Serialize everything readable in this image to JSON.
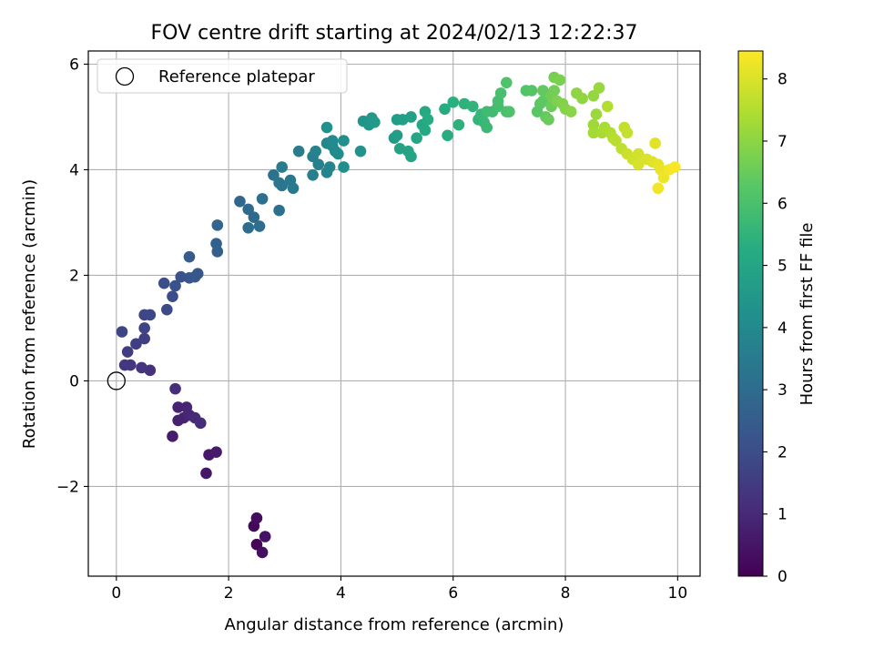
{
  "chart_data": {
    "type": "scatter",
    "title": "FOV centre drift starting at 2024/02/13 12:22:37",
    "xlabel": "Angular distance from reference (arcmin)",
    "ylabel": "Rotation from reference (arcmin)",
    "xlim": [
      -0.5,
      10.4
    ],
    "ylim": [
      -3.7,
      6.25
    ],
    "xticks": [
      0,
      2,
      4,
      6,
      8,
      10
    ],
    "yticks": [
      -2,
      0,
      2,
      4,
      6
    ],
    "xtick_labels": [
      "0",
      "2",
      "4",
      "6",
      "8",
      "10"
    ],
    "ytick_labels": [
      "−2",
      "0",
      "2",
      "4",
      "6"
    ],
    "grid": true,
    "legend": {
      "placement": "top-left",
      "entries": [
        "Reference platepar"
      ]
    },
    "reference_point": {
      "x": 0,
      "y": 0,
      "label": "Reference platepar"
    },
    "colorbar": {
      "label": "Hours from first FF file",
      "range": [
        0,
        8.45
      ],
      "ticks": [
        0,
        1,
        2,
        3,
        4,
        5,
        6,
        7,
        8
      ],
      "tick_labels": [
        "0",
        "1",
        "2",
        "3",
        "4",
        "5",
        "6",
        "7",
        "8"
      ],
      "colormap": "viridis"
    },
    "points": [
      [
        2.5,
        -3.1,
        0.1
      ],
      [
        2.45,
        -2.75,
        0.2
      ],
      [
        2.5,
        -2.6,
        0.3
      ],
      [
        2.6,
        -3.25,
        0.35
      ],
      [
        2.65,
        -2.95,
        0.45
      ],
      [
        1.6,
        -1.75,
        0.55
      ],
      [
        1.65,
        -1.4,
        0.6
      ],
      [
        1.78,
        -1.35,
        0.65
      ],
      [
        1.0,
        -1.05,
        0.7
      ],
      [
        1.1,
        -0.75,
        0.75
      ],
      [
        1.2,
        -0.7,
        0.8
      ],
      [
        1.1,
        -0.5,
        0.85
      ],
      [
        1.25,
        -0.5,
        0.9
      ],
      [
        1.3,
        -0.65,
        0.95
      ],
      [
        1.4,
        -0.7,
        1.0
      ],
      [
        1.5,
        -0.8,
        1.05
      ],
      [
        1.05,
        -0.15,
        1.1
      ],
      [
        0.6,
        0.2,
        1.2
      ],
      [
        0.45,
        0.25,
        1.3
      ],
      [
        0.25,
        0.3,
        1.35
      ],
      [
        0.15,
        0.3,
        1.4
      ],
      [
        0.2,
        0.55,
        1.5
      ],
      [
        0.35,
        0.7,
        1.55
      ],
      [
        0.5,
        0.8,
        1.6
      ],
      [
        0.5,
        1.0,
        1.7
      ],
      [
        0.1,
        0.93,
        1.75
      ],
      [
        0.5,
        1.25,
        1.8
      ],
      [
        0.6,
        1.25,
        1.85
      ],
      [
        0.9,
        1.35,
        1.9
      ],
      [
        1.0,
        1.6,
        2.0
      ],
      [
        0.85,
        1.85,
        2.05
      ],
      [
        1.05,
        1.8,
        2.1
      ],
      [
        1.15,
        1.97,
        2.2
      ],
      [
        1.3,
        1.95,
        2.25
      ],
      [
        1.4,
        1.97,
        2.3
      ],
      [
        1.45,
        2.03,
        2.35
      ],
      [
        1.3,
        2.35,
        2.45
      ],
      [
        1.8,
        2.45,
        2.55
      ],
      [
        1.78,
        2.6,
        2.65
      ],
      [
        1.8,
        2.95,
        2.75
      ],
      [
        2.2,
        3.4,
        2.85
      ],
      [
        2.35,
        3.25,
        2.9
      ],
      [
        2.45,
        3.1,
        2.95
      ],
      [
        2.35,
        2.9,
        3.0
      ],
      [
        2.55,
        2.93,
        3.05
      ],
      [
        2.6,
        3.45,
        3.1
      ],
      [
        2.9,
        3.23,
        3.15
      ],
      [
        2.8,
        3.9,
        3.2
      ],
      [
        2.95,
        3.7,
        3.3
      ],
      [
        2.9,
        3.75,
        3.35
      ],
      [
        3.1,
        3.8,
        3.4
      ],
      [
        3.15,
        3.65,
        3.45
      ],
      [
        2.95,
        4.05,
        3.5
      ],
      [
        3.25,
        4.35,
        3.55
      ],
      [
        3.5,
        4.25,
        3.6
      ],
      [
        3.5,
        3.9,
        3.65
      ],
      [
        3.6,
        4.1,
        3.7
      ],
      [
        3.55,
        4.35,
        3.75
      ],
      [
        3.75,
        3.95,
        3.8
      ],
      [
        3.8,
        4.05,
        3.85
      ],
      [
        3.75,
        4.5,
        3.9
      ],
      [
        3.85,
        4.45,
        3.95
      ],
      [
        3.9,
        4.35,
        4.0
      ],
      [
        3.85,
        4.55,
        4.05
      ],
      [
        3.95,
        4.3,
        4.1
      ],
      [
        4.05,
        4.05,
        4.15
      ],
      [
        4.05,
        4.55,
        4.2
      ],
      [
        3.75,
        4.8,
        4.25
      ],
      [
        4.35,
        4.35,
        4.3
      ],
      [
        4.4,
        4.92,
        4.4
      ],
      [
        4.5,
        4.85,
        4.45
      ],
      [
        4.55,
        4.98,
        4.5
      ],
      [
        4.6,
        4.9,
        4.55
      ],
      [
        4.95,
        4.6,
        4.6
      ],
      [
        5.0,
        4.65,
        4.65
      ],
      [
        5.0,
        4.95,
        4.7
      ],
      [
        5.1,
        4.95,
        4.75
      ],
      [
        5.25,
        5.0,
        4.8
      ],
      [
        5.05,
        4.4,
        4.85
      ],
      [
        5.2,
        4.35,
        4.9
      ],
      [
        5.25,
        4.25,
        4.95
      ],
      [
        5.35,
        4.6,
        5.0
      ],
      [
        5.45,
        4.85,
        5.05
      ],
      [
        5.5,
        4.75,
        5.1
      ],
      [
        5.5,
        5.1,
        5.15
      ],
      [
        5.55,
        4.95,
        5.2
      ],
      [
        5.85,
        5.15,
        5.25
      ],
      [
        5.9,
        4.65,
        5.3
      ],
      [
        6.0,
        5.28,
        5.35
      ],
      [
        6.1,
        4.85,
        5.4
      ],
      [
        6.2,
        5.25,
        5.45
      ],
      [
        6.35,
        5.2,
        5.5
      ],
      [
        6.45,
        4.95,
        5.55
      ],
      [
        6.5,
        5.05,
        5.6
      ],
      [
        6.55,
        4.9,
        5.65
      ],
      [
        6.6,
        4.8,
        5.7
      ],
      [
        6.6,
        5.1,
        5.75
      ],
      [
        6.7,
        5.1,
        5.8
      ],
      [
        6.8,
        5.2,
        5.85
      ],
      [
        6.8,
        5.3,
        5.9
      ],
      [
        6.85,
        5.45,
        5.95
      ],
      [
        6.95,
        5.1,
        6.0
      ],
      [
        7.0,
        5.1,
        6.05
      ],
      [
        6.95,
        5.65,
        6.1
      ],
      [
        7.3,
        5.5,
        6.15
      ],
      [
        7.4,
        5.5,
        6.2
      ],
      [
        7.5,
        5.1,
        6.25
      ],
      [
        7.55,
        5.25,
        6.3
      ],
      [
        7.6,
        5.3,
        6.35
      ],
      [
        7.6,
        5.5,
        6.4
      ],
      [
        7.65,
        5.0,
        6.45
      ],
      [
        7.7,
        4.95,
        6.5
      ],
      [
        7.75,
        5.2,
        6.55
      ],
      [
        7.75,
        5.4,
        6.6
      ],
      [
        7.8,
        5.5,
        6.65
      ],
      [
        7.8,
        5.75,
        6.7
      ],
      [
        7.9,
        5.7,
        6.75
      ],
      [
        7.85,
        5.3,
        6.8
      ],
      [
        7.95,
        5.25,
        6.85
      ],
      [
        8.0,
        5.15,
        6.9
      ],
      [
        8.1,
        5.1,
        6.95
      ],
      [
        8.2,
        5.45,
        7.0
      ],
      [
        8.3,
        5.35,
        7.05
      ],
      [
        8.5,
        5.4,
        7.1
      ],
      [
        8.6,
        5.55,
        7.15
      ],
      [
        8.55,
        5.05,
        7.2
      ],
      [
        8.5,
        4.85,
        7.25
      ],
      [
        8.5,
        4.7,
        7.3
      ],
      [
        8.65,
        4.7,
        7.35
      ],
      [
        8.7,
        4.8,
        7.4
      ],
      [
        8.8,
        4.7,
        7.45
      ],
      [
        8.75,
        5.2,
        7.5
      ],
      [
        8.85,
        4.6,
        7.55
      ],
      [
        8.9,
        4.55,
        7.6
      ],
      [
        9.0,
        4.4,
        7.65
      ],
      [
        9.05,
        4.8,
        7.7
      ],
      [
        9.1,
        4.7,
        7.75
      ],
      [
        9.1,
        4.3,
        7.8
      ],
      [
        9.2,
        4.2,
        7.85
      ],
      [
        9.3,
        4.3,
        7.9
      ],
      [
        9.3,
        4.1,
        7.95
      ],
      [
        9.45,
        4.2,
        8.0
      ],
      [
        9.55,
        4.15,
        8.05
      ],
      [
        9.6,
        4.5,
        8.1
      ],
      [
        9.65,
        4.1,
        8.15
      ],
      [
        9.7,
        4.0,
        8.2
      ],
      [
        9.75,
        3.85,
        8.25
      ],
      [
        9.65,
        3.65,
        8.3
      ],
      [
        9.85,
        4.0,
        8.35
      ],
      [
        9.95,
        4.05,
        8.4
      ]
    ]
  }
}
